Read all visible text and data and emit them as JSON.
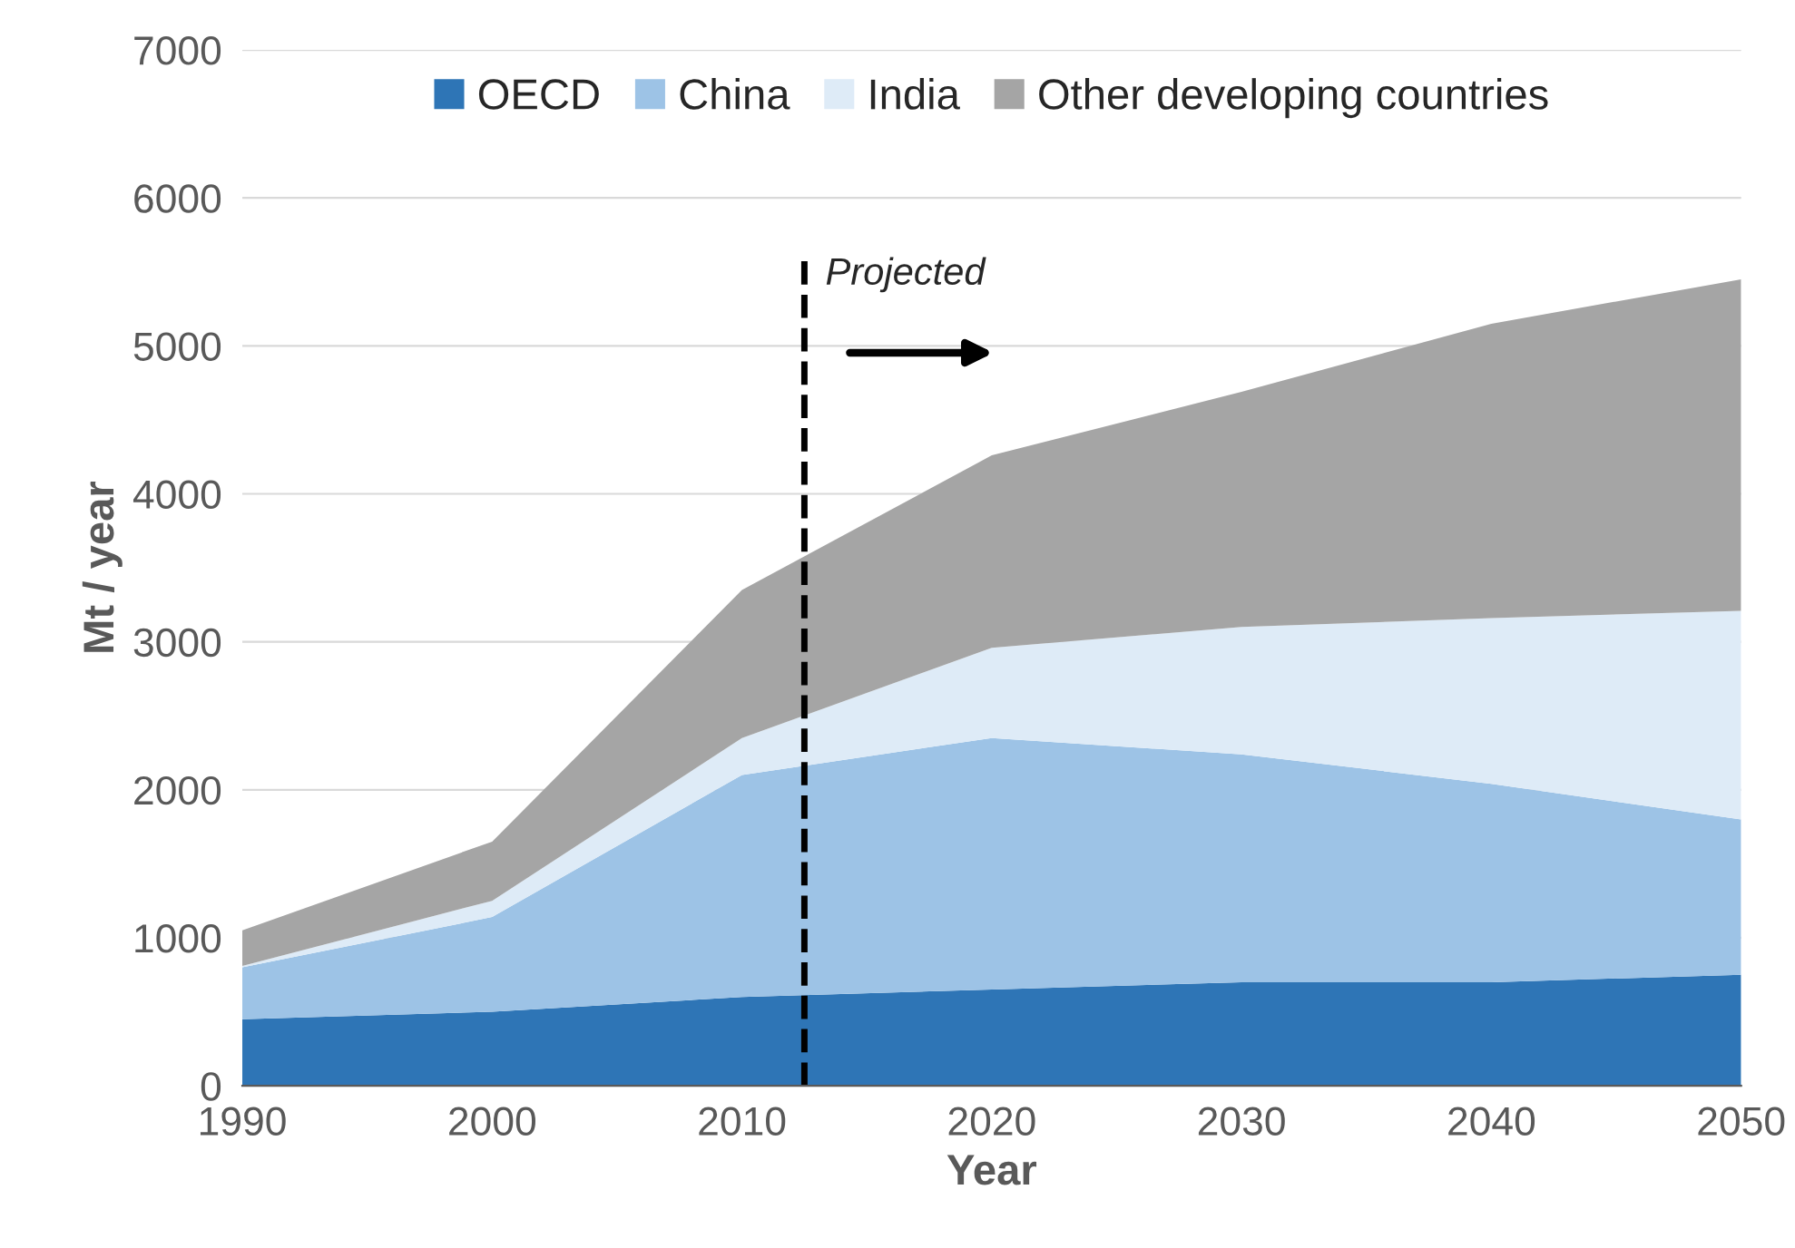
{
  "chart_data": {
    "type": "area",
    "stacked": true,
    "xlabel": "Year",
    "ylabel": "Mt / year",
    "x": [
      1990,
      2000,
      2010,
      2020,
      2030,
      2040,
      2050
    ],
    "series": [
      {
        "name": "OECD",
        "color": "#2e75b6",
        "values": [
          450,
          500,
          600,
          650,
          700,
          700,
          750
        ]
      },
      {
        "name": "China",
        "color": "#9dc3e6",
        "values": [
          350,
          640,
          1500,
          1700,
          1540,
          1340,
          1050
        ]
      },
      {
        "name": "India",
        "color": "#deebf7",
        "values": [
          10,
          110,
          250,
          610,
          860,
          1120,
          1410
        ]
      },
      {
        "name": "Other developing countries",
        "color": "#a5a5a5",
        "values": [
          240,
          400,
          1000,
          1300,
          1590,
          1990,
          2240
        ]
      }
    ],
    "xlim": [
      1990,
      2050
    ],
    "xticks": [
      1990,
      2000,
      2010,
      2020,
      2030,
      2040,
      2050
    ],
    "ylim": [
      0,
      7000
    ],
    "yticks": [
      0,
      1000,
      2000,
      3000,
      4000,
      5000,
      6000,
      7000
    ],
    "ref_lines": [
      {
        "axis": "x",
        "value": 2012.5,
        "label": null,
        "color": "#000000",
        "line_style": "dashed"
      }
    ],
    "annotations": [
      "Projected"
    ],
    "grid": "y",
    "legend": "top"
  }
}
